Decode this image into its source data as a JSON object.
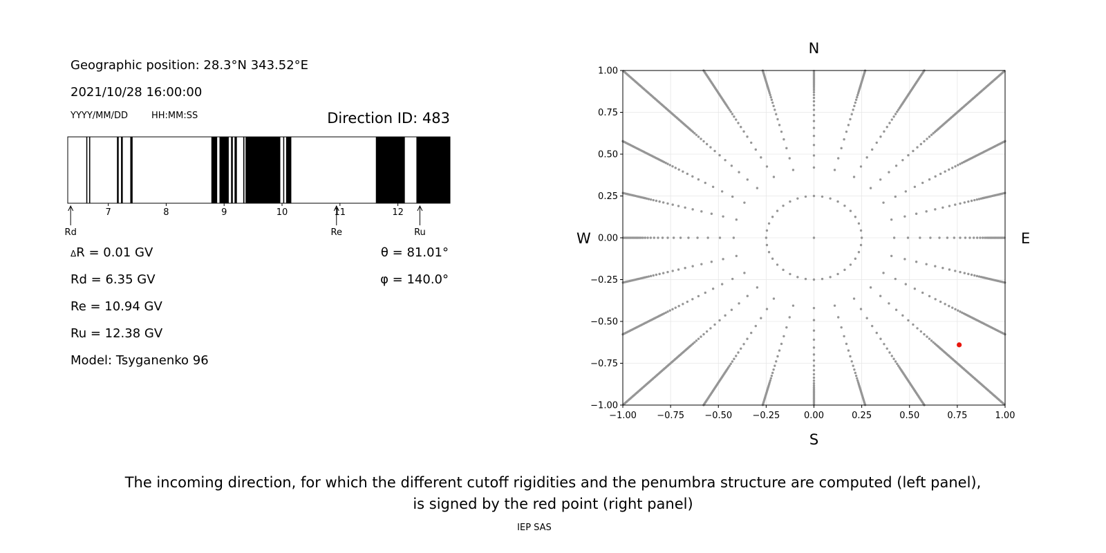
{
  "left_panel": {
    "geo_position": "Geographic position: 28.3°N 343.52°E",
    "datetime": "2021/10/28 16:00:00",
    "date_format": "YYYY/MM/DD",
    "time_format": "HH:MM:SS",
    "direction_id": "Direction ID: 483",
    "delta_r_symbol": "Δ",
    "delta_r": "R = 0.01 GV",
    "rd_line": "Rd = 6.35 GV",
    "re_line": "Re = 10.94 GV",
    "ru_line": "Ru = 12.38 GV",
    "model": "Model: Tsyganenko 96",
    "theta": "θ = 81.01°",
    "phi": "φ = 140.0°"
  },
  "caption": {
    "line1": "The incoming direction, for which the different cutoff rigidities and the penumbra structure are computed (left panel),",
    "line2": "is signed by the red point (right panel)"
  },
  "credit": "IEP SAS",
  "chart_data": [
    {
      "type": "penumbra-strip",
      "xlim": [
        6.3,
        12.9
      ],
      "xticks": [
        7,
        8,
        9,
        10,
        11,
        12
      ],
      "tick_labels": [
        "7",
        "8",
        "9",
        "10",
        "11",
        "12"
      ],
      "forbidden_bands": [
        [
          6.62,
          6.63
        ],
        [
          6.67,
          6.68
        ],
        [
          7.15,
          7.18
        ],
        [
          7.22,
          7.25
        ],
        [
          7.38,
          7.42
        ],
        [
          8.78,
          8.88
        ],
        [
          8.92,
          9.08
        ],
        [
          9.12,
          9.15
        ],
        [
          9.18,
          9.22
        ],
        [
          9.33,
          9.35
        ],
        [
          9.37,
          9.97
        ],
        [
          10.02,
          10.03
        ],
        [
          10.07,
          10.16
        ],
        [
          11.62,
          12.12
        ],
        [
          12.32,
          12.9
        ]
      ],
      "markers": [
        {
          "label": "Rd",
          "value": 6.35
        },
        {
          "label": "Re",
          "value": 10.94
        },
        {
          "label": "Ru",
          "value": 12.38
        }
      ],
      "colors": {
        "forbidden": "#000000",
        "allowed": "#ffffff"
      }
    },
    {
      "type": "scatter",
      "xlim": [
        -1.0,
        1.0
      ],
      "ylim": [
        -1.0,
        1.0
      ],
      "xticks": [
        -1.0,
        -0.75,
        -0.5,
        -0.25,
        0.0,
        0.25,
        0.5,
        0.75,
        1.0
      ],
      "yticks": [
        -1.0,
        -0.75,
        -0.5,
        -0.25,
        0.0,
        0.25,
        0.5,
        0.75,
        1.0
      ],
      "tick_labels": [
        "−1.00",
        "−0.75",
        "−0.50",
        "−0.25",
        "0.00",
        "0.25",
        "0.50",
        "0.75",
        "1.00"
      ],
      "grid": true,
      "compass": {
        "top": "N",
        "bottom": "S",
        "left": "W",
        "right": "E"
      },
      "grid_directions": {
        "center": [
          0.0,
          0.0
        ],
        "inner_ring_radius": 0.25,
        "inner_ring_count": 36,
        "azimuth_count": 24,
        "radial_spokes": "sampled from r = 0.25 outward to the plot edge along each of the 24 azimuths"
      },
      "highlighted_point": {
        "x": 0.76,
        "y": -0.64,
        "theta_deg": 81.01,
        "phi_deg": 140.0
      },
      "colors": {
        "grid_points": "#969696",
        "highlight": "#e8150c",
        "gridlines": "#e6e6e6"
      }
    }
  ]
}
